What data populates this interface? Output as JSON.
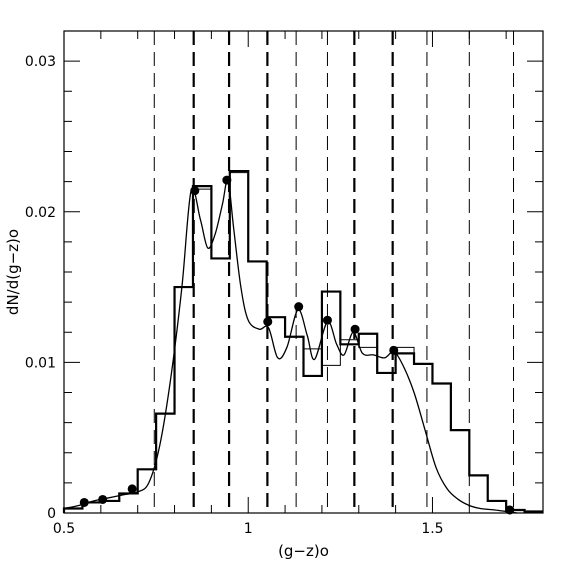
{
  "chart_data": {
    "type": "line",
    "xlabel": "(g−z)o",
    "ylabel": "dN/d(g−z)o",
    "xlim": [
      0.5,
      1.8
    ],
    "ylim": [
      0,
      0.032
    ],
    "x_ticks": [
      0.5,
      1,
      1.5
    ],
    "x_tick_labels": [
      "0.5",
      "1",
      "1.5"
    ],
    "y_ticks": [
      0,
      0.01,
      0.02,
      0.03
    ],
    "y_tick_labels": [
      "0",
      "0.01",
      "0.02",
      "0.03"
    ],
    "x_minor_step": 0.1,
    "y_minor_step": 0.002,
    "grid": false,
    "histogram_thin": {
      "edges": [
        0.5,
        0.55,
        0.6,
        0.65,
        0.7,
        0.75,
        0.8,
        0.85,
        0.9,
        0.95,
        1.0,
        1.05,
        1.1,
        1.15,
        1.2,
        1.25,
        1.3,
        1.35,
        1.4,
        1.45,
        1.5,
        1.55,
        1.6,
        1.65,
        1.7,
        1.75,
        1.8
      ],
      "values": [
        0.0003,
        0.0007,
        0.0008,
        0.0013,
        0.0029,
        0.0066,
        0.015,
        0.0215,
        0.0169,
        0.0226,
        0.0167,
        0.013,
        0.0117,
        0.0109,
        0.0098,
        0.0115,
        0.011,
        0.0093,
        0.011,
        0.0099,
        0.0086,
        0.0055,
        0.0025,
        0.0008,
        0.0002,
        0.0001
      ]
    },
    "histogram_thick": {
      "edges": [
        0.5,
        0.55,
        0.6,
        0.65,
        0.7,
        0.75,
        0.8,
        0.85,
        0.9,
        0.95,
        1.0,
        1.05,
        1.1,
        1.15,
        1.2,
        1.25,
        1.3,
        1.35,
        1.4,
        1.45,
        1.5,
        1.55,
        1.6,
        1.65,
        1.7,
        1.75,
        1.8
      ],
      "values": [
        0.0003,
        0.0007,
        0.0008,
        0.0013,
        0.0029,
        0.0066,
        0.015,
        0.0217,
        0.0169,
        0.0227,
        0.0167,
        0.013,
        0.0117,
        0.0091,
        0.0147,
        0.0112,
        0.0119,
        0.0093,
        0.0106,
        0.0099,
        0.0086,
        0.0055,
        0.0025,
        0.0008,
        0.0002,
        0.0001
      ]
    },
    "curve": {
      "x": [
        0.5,
        0.54,
        0.58,
        0.62,
        0.66,
        0.7,
        0.73,
        0.76,
        0.79,
        0.82,
        0.845,
        0.87,
        0.89,
        0.91,
        0.93,
        0.945,
        0.96,
        0.98,
        1.0,
        1.03,
        1.055,
        1.08,
        1.105,
        1.135,
        1.16,
        1.18,
        1.215,
        1.24,
        1.26,
        1.285,
        1.31,
        1.34,
        1.37,
        1.395,
        1.42,
        1.45,
        1.48,
        1.51,
        1.54,
        1.57,
        1.6,
        1.63,
        1.67,
        1.7,
        1.73
      ],
      "y": [
        0.0003,
        0.0005,
        0.0008,
        0.001,
        0.0012,
        0.0014,
        0.002,
        0.0045,
        0.009,
        0.015,
        0.0214,
        0.0195,
        0.0176,
        0.0185,
        0.0205,
        0.0221,
        0.019,
        0.015,
        0.0128,
        0.0122,
        0.0123,
        0.0103,
        0.011,
        0.0135,
        0.0118,
        0.0102,
        0.0127,
        0.0112,
        0.0105,
        0.012,
        0.0106,
        0.0105,
        0.0103,
        0.0107,
        0.0098,
        0.008,
        0.0055,
        0.003,
        0.0016,
        0.0009,
        0.0005,
        0.0003,
        0.0002,
        0.0001,
        0.0
      ]
    },
    "points": {
      "x": [
        0.555,
        0.605,
        0.685,
        0.855,
        0.942,
        1.053,
        1.137,
        1.215,
        1.29,
        1.395,
        1.71
      ],
      "y": [
        0.0007,
        0.0009,
        0.0016,
        0.0214,
        0.0221,
        0.0127,
        0.0137,
        0.0128,
        0.0122,
        0.0108,
        0.0002
      ]
    },
    "thick_dashed_x": [
      0.852,
      0.948,
      1.052,
      1.288,
      1.392
    ],
    "thin_dashed_x": [
      0.745,
      1.13,
      1.215,
      1.485,
      1.6,
      1.72
    ]
  }
}
